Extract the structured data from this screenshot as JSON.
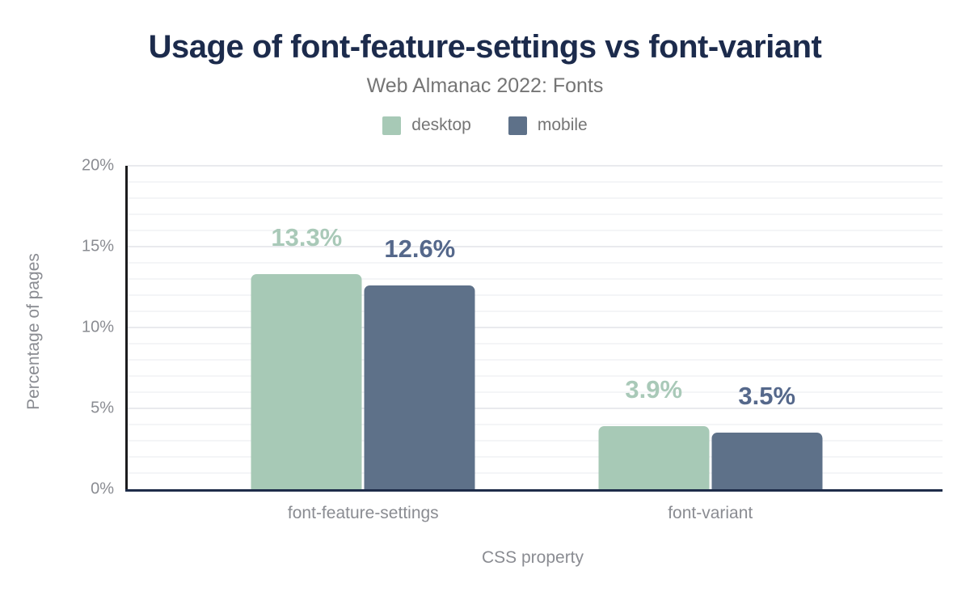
{
  "chart_data": {
    "type": "bar",
    "title": "Usage of font-feature-settings vs font-variant",
    "subtitle": "Web Almanac 2022: Fonts",
    "xlabel": "CSS property",
    "ylabel": "Percentage of pages",
    "ylim": [
      0,
      20
    ],
    "yticks": [
      0,
      5,
      10,
      15,
      20
    ],
    "ytick_suffix": "%",
    "grid": {
      "minor_step": 1,
      "major_step": 5
    },
    "legend_position": "top",
    "categories": [
      "font-feature-settings",
      "font-variant"
    ],
    "series": [
      {
        "name": "desktop",
        "color": "#a7c9b6",
        "label_color": "#a9c9b8",
        "values": [
          13.3,
          3.9
        ],
        "data_labels": [
          "13.3%",
          "3.9%"
        ]
      },
      {
        "name": "mobile",
        "color": "#5e7189",
        "label_color": "#55688b",
        "values": [
          12.6,
          3.5
        ],
        "data_labels": [
          "12.6%",
          "3.5%"
        ]
      }
    ]
  },
  "colors": {
    "title": "#1c2b4c",
    "subtitle": "#757575",
    "axis_text": "#8a8c92",
    "baseline": "#1e2c49",
    "yaxis_line": "#1c1c1e",
    "grid_minor": "#f4f5f7",
    "grid_major": "#e9eaee",
    "background": "#ffffff"
  }
}
